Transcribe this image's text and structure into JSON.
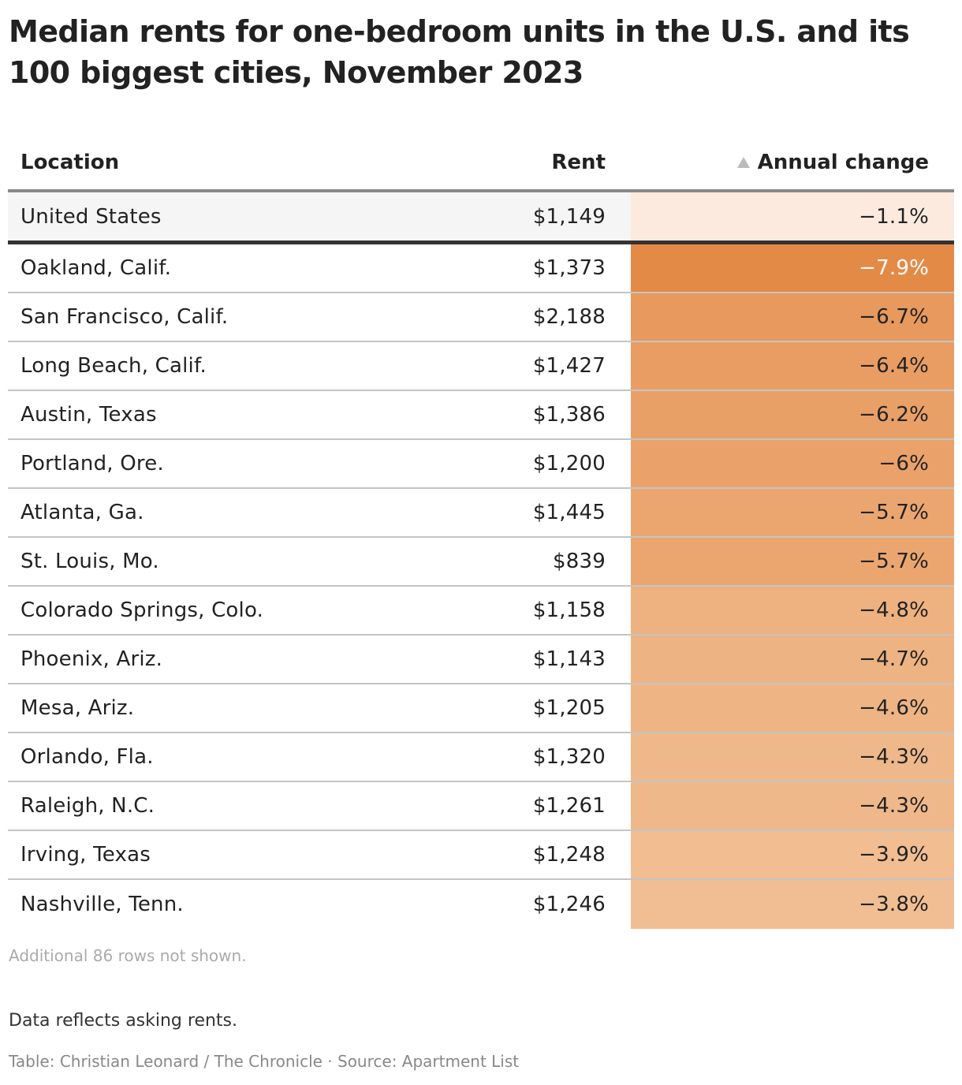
{
  "title": "Median rents for one-bedroom units in the U.S. and its 100 biggest cities, November 2023",
  "columns": {
    "location": "Location",
    "rent": "Rent",
    "change": "Annual change"
  },
  "sort_icon": "triangle-up-icon",
  "colors": {
    "us_row_bg": "#f5f5f5",
    "us_change_bg": "#fdeadf",
    "scale_dark": "#e48a47",
    "scale_light": "#f1be93"
  },
  "chart_data": {
    "type": "table",
    "title": "Median rents for one-bedroom units in the U.S. and its 100 biggest cities, November 2023",
    "columns": [
      "Location",
      "Rent",
      "Annual change"
    ],
    "sorted_by": "Annual change",
    "rows": [
      {
        "location": "United States",
        "rent": "$1,149",
        "change": "−1.1%",
        "value": -1.1
      },
      {
        "location": "Oakland, Calif.",
        "rent": "$1,373",
        "change": "−7.9%",
        "value": -7.9
      },
      {
        "location": "San Francisco, Calif.",
        "rent": "$2,188",
        "change": "−6.7%",
        "value": -6.7
      },
      {
        "location": "Long Beach, Calif.",
        "rent": "$1,427",
        "change": "−6.4%",
        "value": -6.4
      },
      {
        "location": "Austin, Texas",
        "rent": "$1,386",
        "change": "−6.2%",
        "value": -6.2
      },
      {
        "location": "Portland, Ore.",
        "rent": "$1,200",
        "change": "−6%",
        "value": -6.0
      },
      {
        "location": "Atlanta, Ga.",
        "rent": "$1,445",
        "change": "−5.7%",
        "value": -5.7
      },
      {
        "location": "St. Louis, Mo.",
        "rent": "$839",
        "change": "−5.7%",
        "value": -5.7
      },
      {
        "location": "Colorado Springs, Colo.",
        "rent": "$1,158",
        "change": "−4.8%",
        "value": -4.8
      },
      {
        "location": "Phoenix, Ariz.",
        "rent": "$1,143",
        "change": "−4.7%",
        "value": -4.7
      },
      {
        "location": "Mesa, Ariz.",
        "rent": "$1,205",
        "change": "−4.6%",
        "value": -4.6
      },
      {
        "location": "Orlando, Fla.",
        "rent": "$1,320",
        "change": "−4.3%",
        "value": -4.3
      },
      {
        "location": "Raleigh, N.C.",
        "rent": "$1,261",
        "change": "−4.3%",
        "value": -4.3
      },
      {
        "location": "Irving, Texas",
        "rent": "$1,248",
        "change": "−3.9%",
        "value": -3.9
      },
      {
        "location": "Nashville, Tenn.",
        "rent": "$1,246",
        "change": "−3.8%",
        "value": -3.8
      }
    ]
  },
  "footer": {
    "rows_note": "Additional 86 rows not shown.",
    "note": "Data reflects asking rents.",
    "credit": "Table: Christian Leonard / The Chronicle · Source: Apartment List"
  }
}
